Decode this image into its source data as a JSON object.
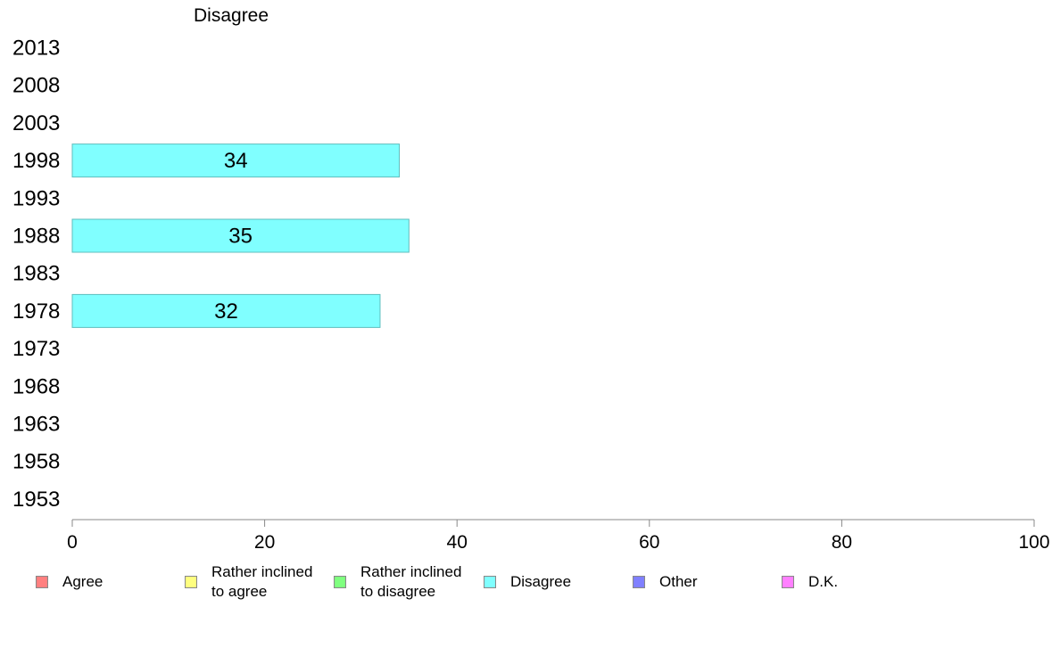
{
  "chart_data": {
    "type": "bar",
    "orientation": "horizontal",
    "title": "Disagree",
    "categories": [
      "2013",
      "2008",
      "2003",
      "1998",
      "1993",
      "1988",
      "1983",
      "1978",
      "1973",
      "1968",
      "1963",
      "1958",
      "1953"
    ],
    "values": [
      null,
      null,
      null,
      34,
      null,
      35,
      null,
      32,
      null,
      null,
      null,
      null,
      null
    ],
    "bar_color": "#80ffff",
    "bar_border_color": "#5fbdbd",
    "xlim": [
      0,
      100
    ],
    "xticks": [
      "0",
      "20",
      "40",
      "60",
      "80",
      "100"
    ],
    "grid": false,
    "legend_position": "bottom"
  },
  "legend": [
    {
      "label": "Agree",
      "color": "#ff8080"
    },
    {
      "label": "Rather inclined\nto agree",
      "color": "#ffff80"
    },
    {
      "label": "Rather inclined\nto disagree",
      "color": "#80ff80"
    },
    {
      "label": "Disagree",
      "color": "#80ffff"
    },
    {
      "label": "Other",
      "color": "#8080ff"
    },
    {
      "label": "D.K.",
      "color": "#ff80ff"
    }
  ]
}
